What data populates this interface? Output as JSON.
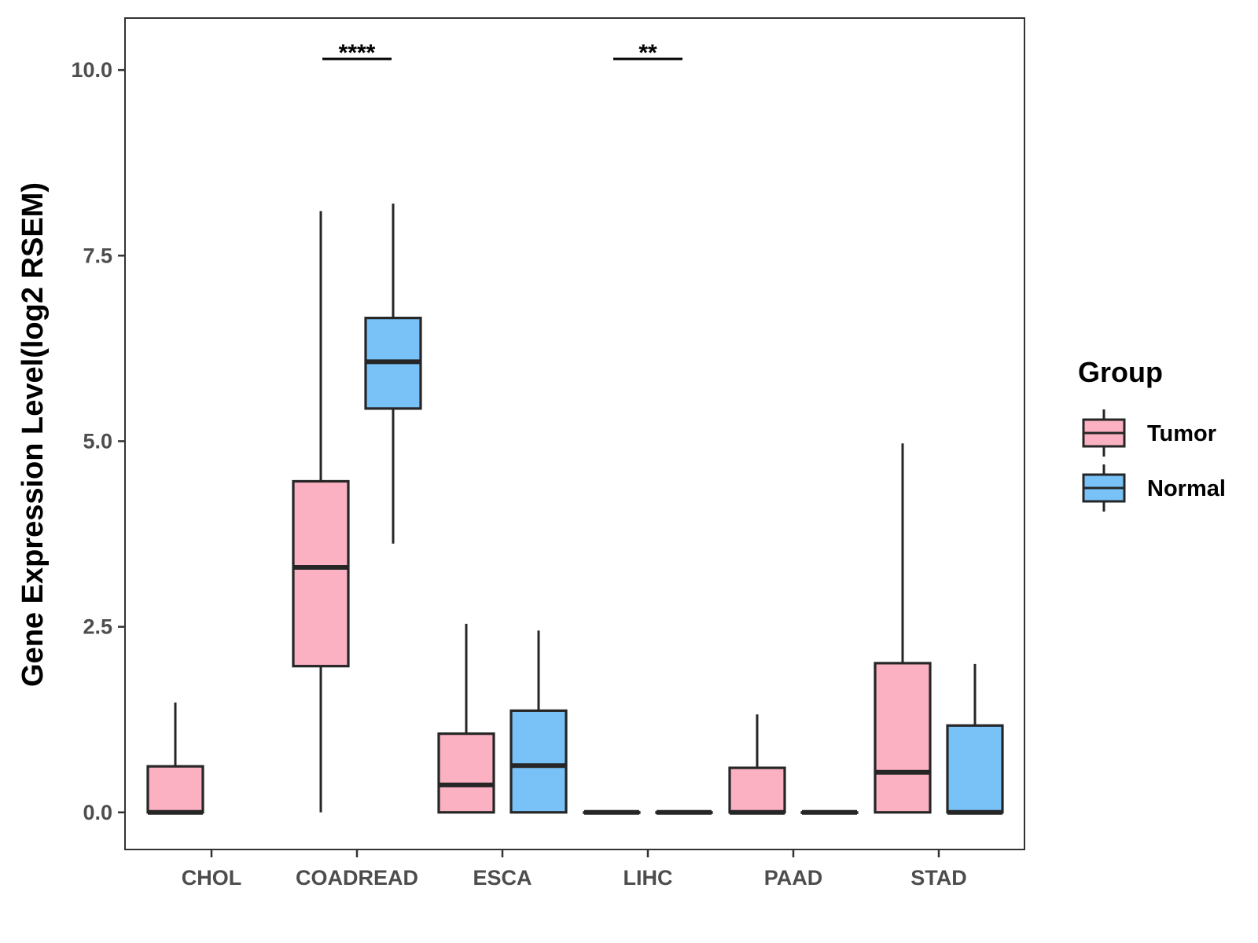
{
  "chart_data": {
    "type": "boxplot",
    "title": "",
    "xlabel": "",
    "ylabel": "Gene Expression Level(log2 RSEM)",
    "ylim": [
      -0.5,
      10.7
    ],
    "yticks": [
      0.0,
      2.5,
      5.0,
      7.5,
      10.0
    ],
    "ytick_labels": [
      "0.0",
      "2.5",
      "5.0",
      "7.5",
      "10.0"
    ],
    "categories": [
      "CHOL",
      "COADREAD",
      "ESCA",
      "LIHC",
      "PAAD",
      "STAD"
    ],
    "legend": {
      "title": "Group",
      "position": "right",
      "entries": [
        {
          "name": "Tumor",
          "color": "#FBB1C2"
        },
        {
          "name": "Normal",
          "color": "#78C2F8"
        }
      ]
    },
    "series": [
      {
        "name": "Tumor",
        "color": "#FBB1C2",
        "boxes": [
          {
            "category": "CHOL",
            "low": 0.0,
            "q1": 0.0,
            "median": 0.0,
            "q3": 0.62,
            "high": 1.48
          },
          {
            "category": "COADREAD",
            "low": 0.0,
            "q1": 1.97,
            "median": 3.3,
            "q3": 4.46,
            "high": 8.1
          },
          {
            "category": "ESCA",
            "low": 0.0,
            "q1": 0.0,
            "median": 0.37,
            "q3": 1.06,
            "high": 2.54
          },
          {
            "category": "LIHC",
            "low": 0.0,
            "q1": 0.0,
            "median": 0.0,
            "q3": 0.0,
            "high": 0.0
          },
          {
            "category": "PAAD",
            "low": 0.0,
            "q1": 0.0,
            "median": 0.0,
            "q3": 0.6,
            "high": 1.32
          },
          {
            "category": "STAD",
            "low": 0.0,
            "q1": 0.0,
            "median": 0.54,
            "q3": 2.01,
            "high": 4.97
          }
        ]
      },
      {
        "name": "Normal",
        "color": "#78C2F8",
        "boxes": [
          {
            "category": "CHOL",
            "present": false
          },
          {
            "category": "COADREAD",
            "low": 3.62,
            "q1": 5.44,
            "median": 6.07,
            "q3": 6.66,
            "high": 8.2
          },
          {
            "category": "ESCA",
            "low": 0.0,
            "q1": 0.0,
            "median": 0.63,
            "q3": 1.37,
            "high": 2.45
          },
          {
            "category": "LIHC",
            "low": 0.0,
            "q1": 0.0,
            "median": 0.0,
            "q3": 0.0,
            "high": 0.0
          },
          {
            "category": "PAAD",
            "low": 0.0,
            "q1": 0.0,
            "median": 0.0,
            "q3": 0.0,
            "high": 0.0
          },
          {
            "category": "STAD",
            "low": 0.0,
            "q1": 0.0,
            "median": 0.0,
            "q3": 1.17,
            "high": 2.0
          }
        ]
      }
    ],
    "significance": [
      {
        "category": "COADREAD",
        "label": "****",
        "y": 10.15
      },
      {
        "category": "LIHC",
        "label": "**",
        "y": 10.15
      }
    ]
  }
}
